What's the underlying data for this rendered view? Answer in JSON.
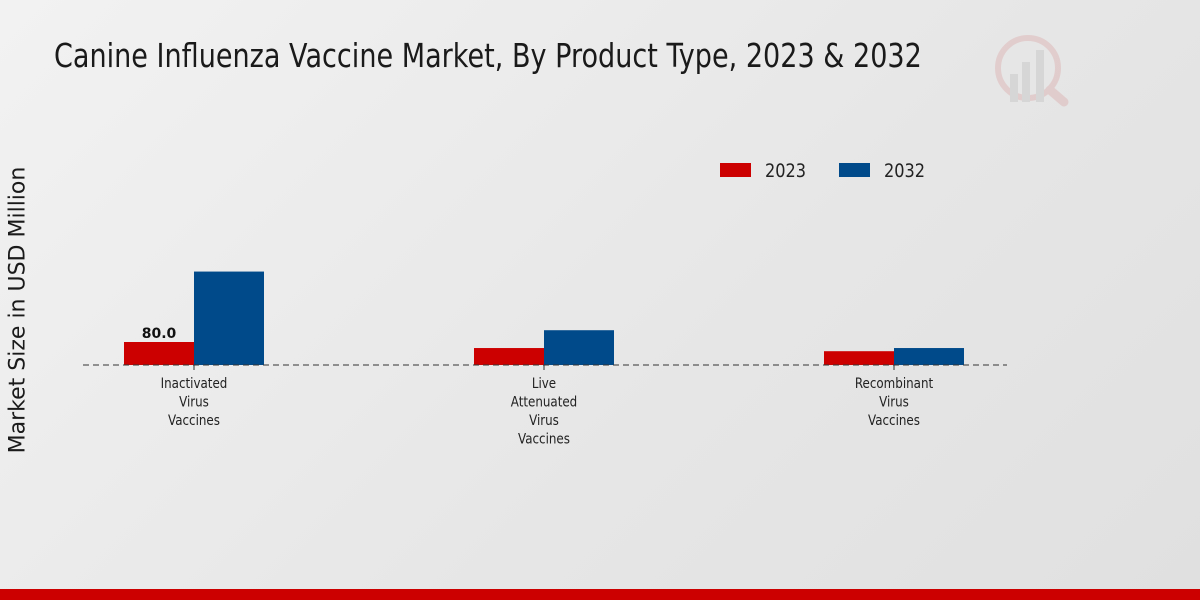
{
  "chart_data": {
    "type": "bar",
    "title": "Canine Influenza Vaccine Market, By Product Type, 2023 & 2032",
    "xlabel": "",
    "ylabel": "Market Size in USD Million",
    "categories": [
      "Inactivated Virus Vaccines",
      "Live Attenuated Virus Vaccines",
      "Recombinant Virus Vaccines"
    ],
    "category_lines": [
      [
        "Inactivated",
        "Virus",
        "Vaccines"
      ],
      [
        "Live",
        "Attenuated",
        "Virus",
        "Vaccines"
      ],
      [
        "Recombinant",
        "Virus",
        "Vaccines"
      ]
    ],
    "series": [
      {
        "name": "2023",
        "color": "#cc0000",
        "values": [
          80.0,
          59,
          48
        ]
      },
      {
        "name": "2032",
        "color": "#004a8a",
        "values": [
          325,
          121,
          59
        ]
      }
    ],
    "data_labels": [
      {
        "series": "2023",
        "category": "Inactivated Virus Vaccines",
        "text": "80.0"
      }
    ],
    "legend_position": "top-right",
    "grid": false
  }
}
